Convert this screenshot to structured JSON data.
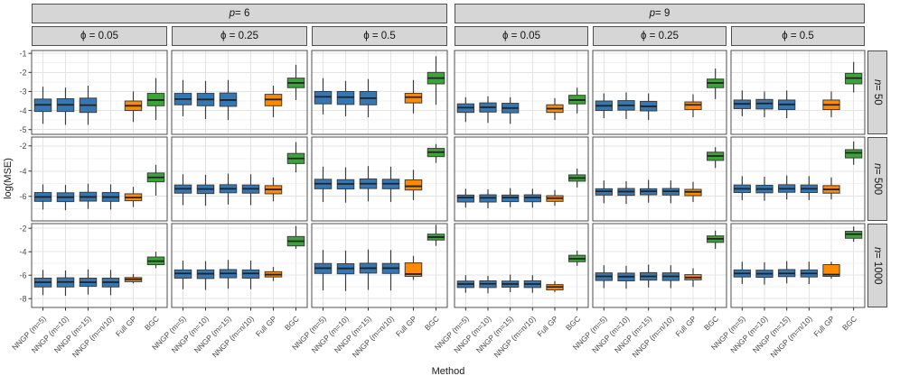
{
  "chart_data": {
    "type": "boxplot",
    "title": "",
    "ylabel": "log(MSE)",
    "xlabel": "Method",
    "legend": "none",
    "grid": true,
    "facet_p": [
      {
        "var": "p",
        "rest": " = 6"
      },
      {
        "var": "p",
        "rest": " = 9"
      }
    ],
    "facet_phi": [
      "ϕ = 0.05",
      "ϕ = 0.25",
      "ϕ = 0.5"
    ],
    "facet_n": [
      {
        "var": "n",
        "rest": " = 50"
      },
      {
        "var": "n",
        "rest": " = 500"
      },
      {
        "var": "n",
        "rest": " = 1000"
      }
    ],
    "methods": [
      "NNGP (m=5)",
      "NNGP (m=10)",
      "NNGP (m=15)",
      "NNGP (m=n/10)",
      "Full GP",
      "BGC"
    ],
    "box_colors_by_method": [
      "#3577b2",
      "#3577b2",
      "#3577b2",
      "#3577b2",
      "#ff8a00",
      "#3ba439"
    ],
    "colors": {
      "nngp_blue": "#3577b2",
      "full_gp_orange": "#ff8a00",
      "bgc_green": "#3ba439",
      "box_stroke": "#3d3d3d",
      "strip_fill": "#d6d6d6",
      "panel_border": "#4f4f4f",
      "grid_major": "#e4e4e4",
      "grid_minor": "#f2f2f2",
      "tick_text": "#4a4a4a"
    },
    "rows": [
      {
        "n": "50",
        "domain": [
          -0.85,
          -5.25
        ],
        "ticks": [
          -1,
          -2,
          -3,
          -4,
          -5
        ],
        "minor": [
          -1.5,
          -2.5,
          -3.5,
          -4.5
        ]
      },
      {
        "n": "500",
        "domain": [
          -1.3,
          -7.95
        ],
        "ticks": [
          -2,
          -4,
          -6
        ],
        "minor": [
          -3,
          -5,
          -7
        ]
      },
      {
        "n": "1000",
        "domain": [
          -1.6,
          -8.75
        ],
        "ticks": [
          -2,
          -4,
          -6,
          -8
        ],
        "minor": [
          -3,
          -5,
          -7
        ]
      }
    ],
    "box_value_order": [
      "whisker_low",
      "q1",
      "median",
      "q3",
      "whisker_high"
    ],
    "panels": [
      [
        [
          [
            -4.7,
            -4.05,
            -3.7,
            -3.4,
            -2.75
          ],
          [
            -4.75,
            -4.05,
            -3.7,
            -3.38,
            -2.8
          ],
          [
            -4.75,
            -4.1,
            -3.72,
            -3.35,
            -2.7
          ],
          null,
          [
            -4.6,
            -4.0,
            -3.75,
            -3.5,
            -3.0
          ],
          [
            -4.5,
            -3.75,
            -3.45,
            -3.1,
            -2.3
          ]
        ],
        [
          [
            -4.3,
            -3.7,
            -3.4,
            -3.1,
            -2.4
          ],
          [
            -4.45,
            -3.75,
            -3.42,
            -3.1,
            -2.45
          ],
          [
            -4.5,
            -3.78,
            -3.45,
            -3.08,
            -2.4
          ],
          null,
          [
            -4.35,
            -3.75,
            -3.42,
            -3.15,
            -2.7
          ],
          [
            -3.45,
            -2.8,
            -2.55,
            -2.3,
            -1.6
          ]
        ],
        [
          [
            -4.2,
            -3.65,
            -3.28,
            -3.0,
            -2.3
          ],
          [
            -4.3,
            -3.68,
            -3.3,
            -3.0,
            -2.45
          ],
          [
            -4.35,
            -3.7,
            -3.35,
            -3.0,
            -2.35
          ],
          null,
          [
            -4.15,
            -3.6,
            -3.3,
            -3.1,
            -2.4
          ],
          [
            -3.7,
            -2.6,
            -2.3,
            -2.0,
            -1.15
          ]
        ],
        [
          [
            -4.6,
            -4.1,
            -3.85,
            -3.65,
            -3.3
          ],
          [
            -4.65,
            -4.08,
            -3.83,
            -3.6,
            -3.25
          ],
          [
            -4.7,
            -4.12,
            -3.87,
            -3.62,
            -3.3
          ],
          null,
          [
            -4.5,
            -4.1,
            -3.9,
            -3.7,
            -3.35
          ],
          [
            -4.15,
            -3.65,
            -3.45,
            -3.2,
            -2.8
          ]
        ],
        [
          [
            -4.4,
            -4.0,
            -3.75,
            -3.5,
            -3.1
          ],
          [
            -4.45,
            -3.98,
            -3.73,
            -3.48,
            -3.05
          ],
          [
            -4.5,
            -4.02,
            -3.78,
            -3.52,
            -3.1
          ],
          null,
          [
            -4.35,
            -3.95,
            -3.7,
            -3.55,
            -3.15
          ],
          [
            -3.4,
            -2.8,
            -2.55,
            -2.35,
            -1.8
          ]
        ],
        [
          [
            -4.3,
            -3.9,
            -3.65,
            -3.45,
            -2.95
          ],
          [
            -4.35,
            -3.92,
            -3.63,
            -3.42,
            -3.0
          ],
          [
            -4.4,
            -3.95,
            -3.68,
            -3.45,
            -2.95
          ],
          null,
          [
            -4.35,
            -3.95,
            -3.7,
            -3.45,
            -3.0
          ],
          [
            -3.05,
            -2.6,
            -2.3,
            -2.05,
            -1.45
          ]
        ]
      ],
      [
        [
          [
            -7.05,
            -6.4,
            -6.05,
            -5.7,
            -5.05
          ],
          [
            -7.1,
            -6.42,
            -6.07,
            -5.72,
            -5.1
          ],
          [
            -7.0,
            -6.38,
            -6.05,
            -5.68,
            -5.0
          ],
          [
            -7.05,
            -6.4,
            -6.06,
            -5.7,
            -5.05
          ],
          [
            -6.85,
            -6.35,
            -6.1,
            -5.8,
            -5.25
          ],
          [
            -5.95,
            -4.85,
            -4.5,
            -4.15,
            -3.5
          ]
        ],
        [
          [
            -6.7,
            -5.75,
            -5.4,
            -5.1,
            -4.25
          ],
          [
            -6.75,
            -5.78,
            -5.42,
            -5.1,
            -4.3
          ],
          [
            -6.65,
            -5.72,
            -5.4,
            -5.08,
            -4.2
          ],
          [
            -6.7,
            -5.75,
            -5.4,
            -5.1,
            -4.25
          ],
          [
            -6.4,
            -5.8,
            -5.45,
            -5.15,
            -4.5
          ],
          [
            -4.1,
            -3.4,
            -3.0,
            -2.6,
            -1.7
          ]
        ],
        [
          [
            -6.45,
            -5.4,
            -5.0,
            -4.65,
            -3.65
          ],
          [
            -6.5,
            -5.42,
            -5.02,
            -4.68,
            -3.7
          ],
          [
            -6.4,
            -5.38,
            -5.0,
            -4.62,
            -3.6
          ],
          [
            -6.45,
            -5.4,
            -5.0,
            -4.65,
            -3.65
          ],
          [
            -6.3,
            -5.5,
            -5.2,
            -4.7,
            -3.9
          ],
          [
            -3.35,
            -2.85,
            -2.5,
            -2.2,
            -1.85
          ]
        ],
        [
          [
            -6.9,
            -6.45,
            -6.1,
            -5.9,
            -5.4
          ],
          [
            -6.95,
            -6.45,
            -6.12,
            -5.88,
            -5.45
          ],
          [
            -6.85,
            -6.42,
            -6.1,
            -5.9,
            -5.35
          ],
          [
            -6.9,
            -6.43,
            -6.1,
            -5.88,
            -5.4
          ],
          [
            -6.75,
            -6.4,
            -6.15,
            -5.95,
            -5.5
          ],
          [
            -5.3,
            -4.8,
            -4.55,
            -4.3,
            -3.8
          ]
        ],
        [
          [
            -6.55,
            -5.9,
            -5.6,
            -5.4,
            -4.75
          ],
          [
            -6.6,
            -5.92,
            -5.62,
            -5.38,
            -4.8
          ],
          [
            -6.5,
            -5.88,
            -5.6,
            -5.4,
            -4.7
          ],
          [
            -6.55,
            -5.9,
            -5.6,
            -5.38,
            -4.75
          ],
          [
            -6.45,
            -5.95,
            -5.65,
            -5.45,
            -4.85
          ],
          [
            -3.75,
            -3.15,
            -2.8,
            -2.5,
            -2.1
          ]
        ],
        [
          [
            -6.3,
            -5.7,
            -5.4,
            -5.1,
            -4.4
          ],
          [
            -6.35,
            -5.72,
            -5.42,
            -5.12,
            -4.45
          ],
          [
            -6.25,
            -5.68,
            -5.4,
            -5.08,
            -4.35
          ],
          [
            -6.3,
            -5.7,
            -5.4,
            -5.1,
            -4.4
          ],
          [
            -6.25,
            -5.75,
            -5.45,
            -5.15,
            -4.5
          ],
          [
            -3.5,
            -2.95,
            -2.55,
            -2.3,
            -1.65
          ]
        ]
      ],
      [
        [
          [
            -7.7,
            -7.0,
            -6.6,
            -6.25,
            -5.55
          ],
          [
            -7.75,
            -7.0,
            -6.58,
            -6.22,
            -5.6
          ],
          [
            -7.65,
            -6.95,
            -6.6,
            -6.25,
            -5.5
          ],
          [
            -7.7,
            -7.0,
            -6.6,
            -6.25,
            -5.55
          ],
          [
            -6.7,
            -6.55,
            -6.35,
            -6.2,
            -5.9
          ],
          [
            -5.4,
            -5.1,
            -4.8,
            -4.45,
            -4.0
          ]
        ],
        [
          [
            -7.2,
            -6.25,
            -5.85,
            -5.55,
            -4.75
          ],
          [
            -7.25,
            -6.28,
            -5.87,
            -5.55,
            -4.8
          ],
          [
            -7.15,
            -6.22,
            -5.85,
            -5.52,
            -4.7
          ],
          [
            -7.2,
            -6.25,
            -5.85,
            -5.55,
            -4.75
          ],
          [
            -6.5,
            -6.15,
            -5.95,
            -5.7,
            -5.3
          ],
          [
            -3.75,
            -3.5,
            -3.1,
            -2.7,
            -1.8
          ]
        ],
        [
          [
            -7.3,
            -5.85,
            -5.4,
            -5.0,
            -3.85
          ],
          [
            -7.35,
            -5.88,
            -5.42,
            -5.02,
            -3.9
          ],
          [
            -7.25,
            -5.82,
            -5.4,
            -4.98,
            -3.8
          ],
          [
            -7.3,
            -5.85,
            -5.4,
            -5.0,
            -3.85
          ],
          [
            -6.4,
            -6.1,
            -5.9,
            -4.95,
            -4.35
          ],
          [
            -3.5,
            -3.0,
            -2.75,
            -2.5,
            -1.7
          ]
        ],
        [
          [
            -7.5,
            -7.05,
            -6.75,
            -6.5,
            -6.0
          ],
          [
            -7.55,
            -7.05,
            -6.73,
            -6.48,
            -6.05
          ],
          [
            -7.45,
            -7.02,
            -6.75,
            -6.5,
            -5.95
          ],
          [
            -7.5,
            -7.05,
            -6.75,
            -6.48,
            -6.0
          ],
          [
            -7.45,
            -7.25,
            -7.0,
            -6.8,
            -6.5
          ],
          [
            -5.2,
            -4.85,
            -4.6,
            -4.3,
            -3.9
          ]
        ],
        [
          [
            -7.1,
            -6.45,
            -6.1,
            -5.8,
            -5.15
          ],
          [
            -7.15,
            -6.48,
            -6.12,
            -5.82,
            -5.2
          ],
          [
            -7.05,
            -6.42,
            -6.1,
            -5.78,
            -5.1
          ],
          [
            -7.1,
            -6.45,
            -6.1,
            -5.8,
            -5.15
          ],
          [
            -7.0,
            -6.4,
            -6.2,
            -5.95,
            -5.4
          ],
          [
            -3.75,
            -3.2,
            -2.9,
            -2.65,
            -2.2
          ]
        ],
        [
          [
            -6.75,
            -6.15,
            -5.85,
            -5.55,
            -4.85
          ],
          [
            -6.8,
            -6.18,
            -5.87,
            -5.57,
            -4.9
          ],
          [
            -6.7,
            -6.12,
            -5.85,
            -5.52,
            -4.8
          ],
          [
            -6.75,
            -6.15,
            -5.85,
            -5.55,
            -4.85
          ],
          [
            -6.3,
            -6.1,
            -5.95,
            -5.1,
            -4.85
          ],
          [
            -3.15,
            -2.85,
            -2.5,
            -2.25,
            -1.85
          ]
        ]
      ]
    ]
  }
}
